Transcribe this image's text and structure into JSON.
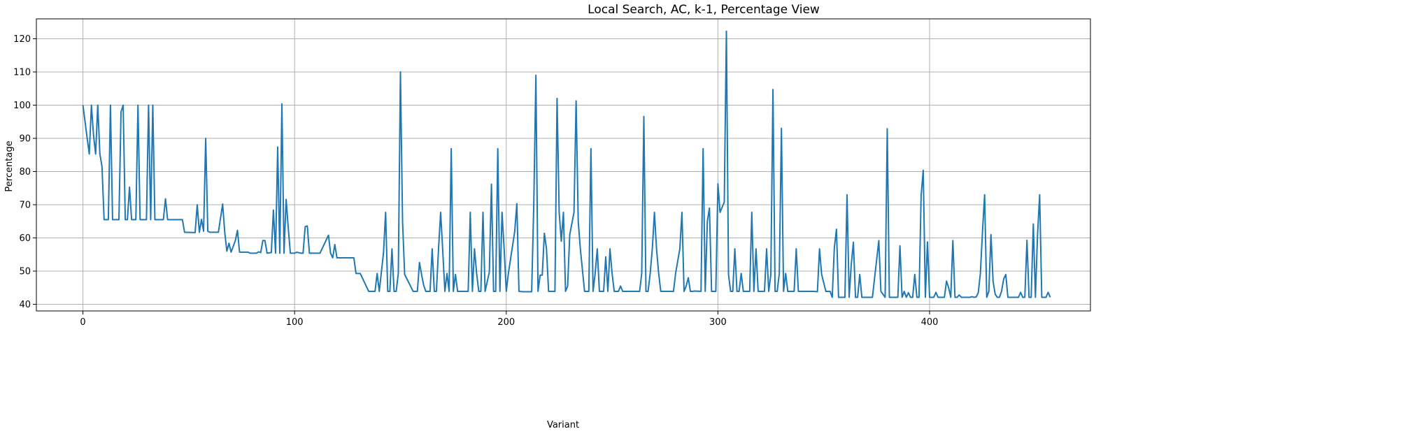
{
  "chart_data": {
    "type": "line",
    "title": "Local Search, AC, k-1, Percentage View",
    "xlabel": "Variant",
    "ylabel": "Percentage",
    "xlim": [
      -22,
      476
    ],
    "ylim": [
      38,
      126
    ],
    "x_ticks": [
      0,
      100,
      200,
      300,
      400
    ],
    "y_ticks": [
      40,
      50,
      60,
      70,
      80,
      90,
      100,
      110,
      120
    ],
    "grid": true,
    "line_color": "#1f77b4",
    "series": [
      {
        "points": [
          [
            0,
            100
          ],
          [
            2,
            90
          ],
          [
            3,
            85.3
          ],
          [
            4,
            100
          ],
          [
            5,
            91
          ],
          [
            6,
            85.3
          ],
          [
            7,
            100
          ],
          [
            8,
            85.3
          ],
          [
            9,
            81.5
          ],
          [
            10,
            65.5
          ],
          [
            12,
            65.5
          ],
          [
            13,
            100
          ],
          [
            14,
            65.5
          ],
          [
            17,
            65.5
          ],
          [
            18,
            98
          ],
          [
            19,
            100
          ],
          [
            20,
            65.5
          ],
          [
            21,
            65.5
          ],
          [
            22,
            75.3
          ],
          [
            23,
            65.5
          ],
          [
            25,
            65.5
          ],
          [
            26,
            100
          ],
          [
            27,
            65.5
          ],
          [
            30,
            65.5
          ],
          [
            31,
            100
          ],
          [
            32,
            65.5
          ],
          [
            33,
            100
          ],
          [
            34,
            65.5
          ],
          [
            38,
            65.5
          ],
          [
            39,
            71.8
          ],
          [
            40,
            65.5
          ],
          [
            47,
            65.5
          ],
          [
            48,
            61.7
          ],
          [
            53,
            61.6
          ],
          [
            54,
            70
          ],
          [
            55,
            61.7
          ],
          [
            56,
            65.6
          ],
          [
            57,
            62
          ],
          [
            58,
            90
          ],
          [
            59,
            62
          ],
          [
            60,
            61.7
          ],
          [
            64,
            61.7
          ],
          [
            66,
            70.2
          ],
          [
            67,
            61.7
          ],
          [
            68,
            56
          ],
          [
            69,
            58.4
          ],
          [
            70,
            55.7
          ],
          [
            72,
            59.2
          ],
          [
            73,
            62.3
          ],
          [
            74,
            55.7
          ],
          [
            78,
            55.7
          ],
          [
            79,
            55.4
          ],
          [
            82,
            55.4
          ],
          [
            83,
            55.8
          ],
          [
            84,
            55.6
          ],
          [
            85,
            59.2
          ],
          [
            86,
            59.2
          ],
          [
            87,
            55.4
          ],
          [
            89,
            55.6
          ],
          [
            90,
            68.4
          ],
          [
            91,
            55.4
          ],
          [
            92,
            87.4
          ],
          [
            93,
            55.4
          ],
          [
            94,
            100.4
          ],
          [
            95,
            55.4
          ],
          [
            96,
            71.6
          ],
          [
            97,
            63
          ],
          [
            98,
            55.4
          ],
          [
            100,
            55.4
          ],
          [
            101,
            55.7
          ],
          [
            103,
            55.4
          ],
          [
            104,
            55.4
          ],
          [
            105,
            63.4
          ],
          [
            106,
            63.6
          ],
          [
            107,
            55.4
          ],
          [
            112,
            55.4
          ],
          [
            116,
            60.8
          ],
          [
            117,
            55.4
          ],
          [
            118,
            54
          ],
          [
            119,
            58
          ],
          [
            120,
            54
          ],
          [
            128,
            54
          ],
          [
            129,
            49.3
          ],
          [
            131,
            49.3
          ],
          [
            135,
            43.9
          ],
          [
            138,
            43.9
          ],
          [
            139,
            49.3
          ],
          [
            140,
            43.9
          ],
          [
            142,
            55.5
          ],
          [
            143,
            67.7
          ],
          [
            144,
            43.9
          ],
          [
            145,
            43.9
          ],
          [
            146,
            56.7
          ],
          [
            147,
            43.9
          ],
          [
            148,
            43.9
          ],
          [
            149,
            49.3
          ],
          [
            150,
            110
          ],
          [
            151,
            65
          ],
          [
            152,
            49
          ],
          [
            156,
            43.9
          ],
          [
            158,
            43.9
          ],
          [
            159,
            52.6
          ],
          [
            160,
            48.9
          ],
          [
            161,
            45.7
          ],
          [
            162,
            43.9
          ],
          [
            164,
            43.9
          ],
          [
            165,
            56.7
          ],
          [
            166,
            43.9
          ],
          [
            167,
            43.9
          ],
          [
            168,
            56.7
          ],
          [
            169,
            67.7
          ],
          [
            170,
            56
          ],
          [
            171,
            43.9
          ],
          [
            172,
            49.3
          ],
          [
            173,
            43.9
          ],
          [
            174,
            86.9
          ],
          [
            175,
            43.9
          ],
          [
            176,
            49
          ],
          [
            177,
            43.9
          ],
          [
            179,
            43.9
          ],
          [
            182,
            43.9
          ],
          [
            183,
            67.7
          ],
          [
            184,
            43.9
          ],
          [
            185,
            56.7
          ],
          [
            186,
            49.3
          ],
          [
            187,
            43.9
          ],
          [
            188,
            43.9
          ],
          [
            189,
            67.7
          ],
          [
            190,
            43.9
          ],
          [
            192,
            49.7
          ],
          [
            193,
            76.2
          ],
          [
            194,
            43.9
          ],
          [
            195,
            43.9
          ],
          [
            196,
            86.9
          ],
          [
            197,
            43.9
          ],
          [
            198,
            67.7
          ],
          [
            199,
            56.7
          ],
          [
            200,
            43.9
          ],
          [
            201,
            49.3
          ],
          [
            204,
            62
          ],
          [
            205,
            70.3
          ],
          [
            206,
            43.9
          ],
          [
            208,
            43.8
          ],
          [
            212,
            43.8
          ],
          [
            213,
            70
          ],
          [
            214,
            109
          ],
          [
            215,
            43.9
          ],
          [
            216,
            48.8
          ],
          [
            217,
            48.8
          ],
          [
            218,
            61.4
          ],
          [
            219,
            56.7
          ],
          [
            220,
            43.9
          ],
          [
            223,
            43.9
          ],
          [
            224,
            102
          ],
          [
            225,
            67.7
          ],
          [
            226,
            59
          ],
          [
            227,
            67.7
          ],
          [
            228,
            43.9
          ],
          [
            229,
            45.5
          ],
          [
            230,
            61
          ],
          [
            232,
            67.7
          ],
          [
            233,
            101.3
          ],
          [
            234,
            65
          ],
          [
            235,
            56.7
          ],
          [
            237,
            43.9
          ],
          [
            239,
            43.9
          ],
          [
            240,
            86.9
          ],
          [
            241,
            43.9
          ],
          [
            242,
            49.3
          ],
          [
            243,
            56.7
          ],
          [
            244,
            43.9
          ],
          [
            246,
            43.9
          ],
          [
            247,
            54.3
          ],
          [
            248,
            43.9
          ],
          [
            249,
            56.7
          ],
          [
            250,
            49.3
          ],
          [
            251,
            43.9
          ],
          [
            253,
            43.9
          ],
          [
            254,
            45.5
          ],
          [
            255,
            43.9
          ],
          [
            263,
            43.9
          ],
          [
            264,
            49.3
          ],
          [
            265,
            96.6
          ],
          [
            266,
            43.9
          ],
          [
            267,
            43.9
          ],
          [
            268,
            49.3
          ],
          [
            269,
            56.7
          ],
          [
            270,
            67.7
          ],
          [
            271,
            56.7
          ],
          [
            272,
            49.3
          ],
          [
            273,
            43.9
          ],
          [
            279,
            43.9
          ],
          [
            280,
            49.3
          ],
          [
            282,
            56.7
          ],
          [
            283,
            67.7
          ],
          [
            284,
            43.9
          ],
          [
            285,
            45.5
          ],
          [
            286,
            48
          ],
          [
            287,
            43.9
          ],
          [
            288,
            43.9
          ],
          [
            289,
            44
          ],
          [
            292,
            43.9
          ],
          [
            293,
            86.9
          ],
          [
            294,
            43.9
          ],
          [
            295,
            65
          ],
          [
            296,
            69
          ],
          [
            297,
            43.9
          ],
          [
            299,
            43.9
          ],
          [
            300,
            76.3
          ],
          [
            301,
            67.7
          ],
          [
            303,
            70.8
          ],
          [
            304,
            122.3
          ],
          [
            305,
            49
          ],
          [
            306,
            43.9
          ],
          [
            307,
            43.9
          ],
          [
            308,
            56.7
          ],
          [
            309,
            43.9
          ],
          [
            310,
            43.9
          ],
          [
            311,
            49.3
          ],
          [
            312,
            43.9
          ],
          [
            315,
            43.9
          ],
          [
            316,
            67.7
          ],
          [
            317,
            43.9
          ],
          [
            318,
            56.7
          ],
          [
            319,
            43.9
          ],
          [
            320,
            43.9
          ],
          [
            322,
            43.9
          ],
          [
            323,
            56.7
          ],
          [
            324,
            43.9
          ],
          [
            325,
            49
          ],
          [
            326,
            104.7
          ],
          [
            327,
            43.9
          ],
          [
            328,
            43.9
          ],
          [
            329,
            49.3
          ],
          [
            330,
            93
          ],
          [
            331,
            43.9
          ],
          [
            332,
            49.3
          ],
          [
            333,
            43.9
          ],
          [
            336,
            43.9
          ],
          [
            337,
            56.7
          ],
          [
            338,
            43.9
          ],
          [
            339,
            43.9
          ],
          [
            345,
            43.9
          ],
          [
            347,
            43.8
          ],
          [
            348,
            56.7
          ],
          [
            349,
            49
          ],
          [
            351,
            43.9
          ],
          [
            353,
            43.9
          ],
          [
            354,
            42.1
          ],
          [
            355,
            57
          ],
          [
            356,
            62.6
          ],
          [
            357,
            42.1
          ],
          [
            360,
            42.1
          ],
          [
            361,
            73
          ],
          [
            362,
            42.1
          ],
          [
            363,
            52
          ],
          [
            364,
            58.7
          ],
          [
            365,
            42.1
          ],
          [
            366,
            42.1
          ],
          [
            367,
            49
          ],
          [
            368,
            42.1
          ],
          [
            373,
            42.1
          ],
          [
            376,
            59.2
          ],
          [
            377,
            43.9
          ],
          [
            378,
            43
          ],
          [
            379,
            42.1
          ],
          [
            380,
            92.9
          ],
          [
            381,
            42.1
          ],
          [
            382,
            42.1
          ],
          [
            385,
            42.1
          ],
          [
            386,
            57.6
          ],
          [
            387,
            42.1
          ],
          [
            388,
            43.9
          ],
          [
            389,
            42.1
          ],
          [
            390,
            43.5
          ],
          [
            391,
            42.1
          ],
          [
            392,
            42.1
          ],
          [
            393,
            49
          ],
          [
            394,
            42.1
          ],
          [
            395,
            42.1
          ],
          [
            396,
            72.7
          ],
          [
            397,
            80.4
          ],
          [
            398,
            42.1
          ],
          [
            399,
            58.8
          ],
          [
            400,
            42.1
          ],
          [
            402,
            42.1
          ],
          [
            403,
            43.6
          ],
          [
            404,
            42.1
          ],
          [
            407,
            42.1
          ],
          [
            408,
            47
          ],
          [
            409,
            45
          ],
          [
            410,
            42.1
          ],
          [
            411,
            59.2
          ],
          [
            412,
            42.1
          ],
          [
            413,
            42.1
          ],
          [
            414,
            42.8
          ],
          [
            415,
            42.1
          ],
          [
            419,
            42.1
          ],
          [
            420,
            42.3
          ],
          [
            421,
            42.1
          ],
          [
            422,
            42.2
          ],
          [
            423,
            43.5
          ],
          [
            424,
            49.3
          ],
          [
            425,
            62
          ],
          [
            426,
            73
          ],
          [
            427,
            42.1
          ],
          [
            428,
            43.9
          ],
          [
            429,
            61
          ],
          [
            430,
            46.9
          ],
          [
            431,
            43
          ],
          [
            432,
            42.1
          ],
          [
            433,
            42.1
          ],
          [
            434,
            43.9
          ],
          [
            435,
            47.6
          ],
          [
            436,
            49
          ],
          [
            437,
            42.1
          ],
          [
            440,
            42.1
          ],
          [
            442,
            42.1
          ],
          [
            443,
            43.6
          ],
          [
            444,
            42.1
          ],
          [
            445,
            42.1
          ],
          [
            446,
            59.3
          ],
          [
            447,
            42.1
          ],
          [
            448,
            42.1
          ],
          [
            449,
            64.2
          ],
          [
            450,
            42.1
          ],
          [
            451,
            61
          ],
          [
            452,
            73
          ],
          [
            453,
            42.1
          ],
          [
            455,
            42.1
          ],
          [
            456,
            43.6
          ],
          [
            457,
            42.1
          ]
        ]
      }
    ]
  }
}
